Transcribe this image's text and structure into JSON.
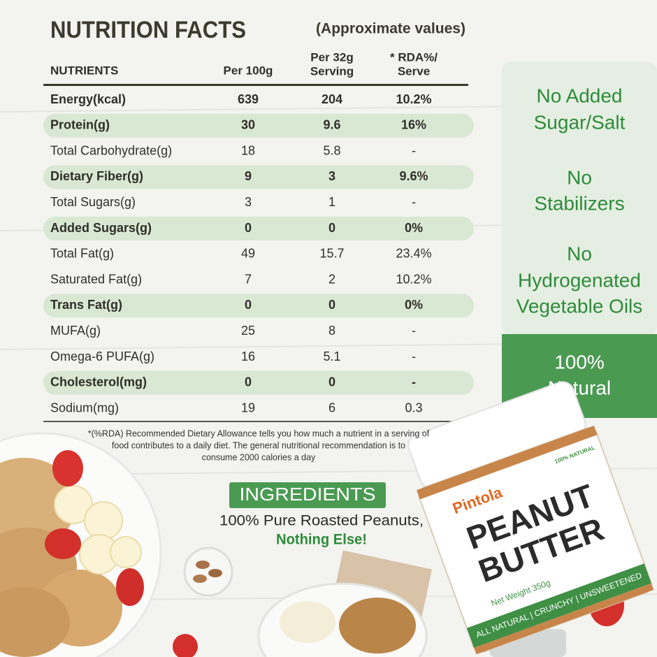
{
  "header": {
    "title": "NUTRITION FACTS",
    "subtitle": "(Approximate values)"
  },
  "table": {
    "columns": [
      [
        "NUTRIENTS"
      ],
      [
        "Per 100g"
      ],
      [
        "Per 32g",
        "Serving"
      ],
      [
        "* RDA%/",
        "Serve"
      ]
    ],
    "rows": [
      {
        "style": "bold",
        "cells": [
          "Energy(kcal)",
          "639",
          "204",
          "10.2%"
        ]
      },
      {
        "style": "highlight",
        "cells": [
          "Protein(g)",
          "30",
          "9.6",
          "16%"
        ]
      },
      {
        "style": "plain",
        "cells": [
          "Total Carbohydrate(g)",
          "18",
          "5.8",
          "-"
        ]
      },
      {
        "style": "highlight",
        "cells": [
          "Dietary Fiber(g)",
          "9",
          "3",
          "9.6%"
        ]
      },
      {
        "style": "plain",
        "cells": [
          "Total Sugars(g)",
          "3",
          "1",
          "-"
        ]
      },
      {
        "style": "highlight",
        "cells": [
          "Added Sugars(g)",
          "0",
          "0",
          "0%"
        ]
      },
      {
        "style": "plain",
        "cells": [
          "Total Fat(g)",
          "49",
          "15.7",
          "23.4%"
        ]
      },
      {
        "style": "plain",
        "cells": [
          "Saturated Fat(g)",
          "7",
          "2",
          "10.2%"
        ]
      },
      {
        "style": "highlight",
        "cells": [
          "Trans Fat(g)",
          "0",
          "0",
          "0%"
        ]
      },
      {
        "style": "plain",
        "cells": [
          "MUFA(g)",
          "25",
          "8",
          "-"
        ]
      },
      {
        "style": "plain",
        "cells": [
          "Omega-6 PUFA(g)",
          "16",
          "5.1",
          "-"
        ]
      },
      {
        "style": "highlight",
        "cells": [
          "Cholesterol(mg)",
          "0",
          "0",
          "-"
        ]
      },
      {
        "style": "plain",
        "cells": [
          "Sodium(mg)",
          "19",
          "6",
          "0.3"
        ]
      }
    ],
    "footnote": [
      "*(%RDA) Recommended Dietary Allowance tells you how much a nutrient in a serving of",
      "food contributes to a daily diet. The general nutritional recommendation is to",
      "consume 2000 calories a day"
    ]
  },
  "claims": [
    [
      "No Added",
      "Sugar/Salt"
    ],
    [
      "No",
      "Stabilizers"
    ],
    [
      "No",
      "Hydrogenated",
      "Vegetable Oils"
    ]
  ],
  "natural": [
    "100%",
    "Natural"
  ],
  "ingredients": {
    "title": "INGREDIENTS",
    "line1": "100% Pure Roasted Peanuts,",
    "line2": "Nothing Else!"
  },
  "jar": {
    "brand": "Pintola",
    "name": [
      "PEANUT",
      "BUTTER"
    ],
    "badge": "100% NATURAL",
    "weight": "Net Weight 350g",
    "tagline": "ALL NATURAL | CRUNCHY | UNSWEETENED"
  }
}
